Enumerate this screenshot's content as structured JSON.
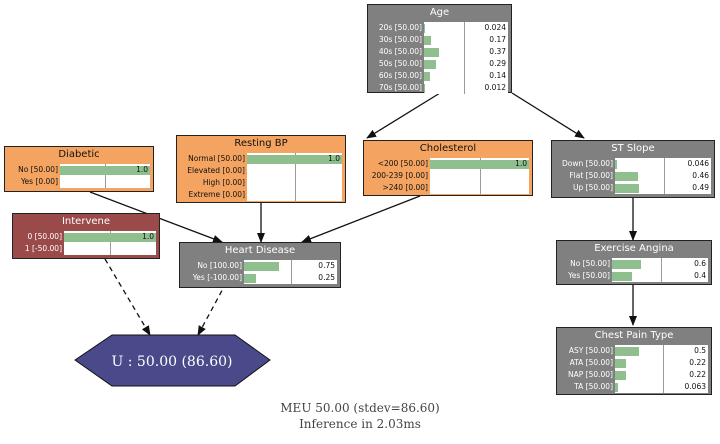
{
  "nodes": {
    "age": {
      "title": "Age",
      "rows": [
        {
          "label": "20s [50.00]",
          "value": 0.024,
          "value_text": "0.024"
        },
        {
          "label": "30s [50.00]",
          "value": 0.17,
          "value_text": "0.17"
        },
        {
          "label": "40s [50.00]",
          "value": 0.37,
          "value_text": "0.37"
        },
        {
          "label": "50s [50.00]",
          "value": 0.29,
          "value_text": "0.29"
        },
        {
          "label": "60s [50.00]",
          "value": 0.14,
          "value_text": "0.14"
        },
        {
          "label": "70s [50.00]",
          "value": 0.012,
          "value_text": "0.012"
        }
      ]
    },
    "diabetic": {
      "title": "Diabetic",
      "rows": [
        {
          "label": "No [50.00]",
          "value": 1.0,
          "value_text": "1.0"
        },
        {
          "label": "Yes [0.00]",
          "value": 0,
          "value_text": ""
        }
      ]
    },
    "resting_bp": {
      "title": "Resting BP",
      "rows": [
        {
          "label": "Normal [50.00]",
          "value": 1.0,
          "value_text": "1.0"
        },
        {
          "label": "Elevated [0.00]",
          "value": 0,
          "value_text": ""
        },
        {
          "label": "High [0.00]",
          "value": 0,
          "value_text": ""
        },
        {
          "label": "Extreme [0.00]",
          "value": 0,
          "value_text": ""
        }
      ]
    },
    "cholesterol": {
      "title": "Cholesterol",
      "rows": [
        {
          "label": "<200 [50.00]",
          "value": 1.0,
          "value_text": "1.0"
        },
        {
          "label": "200-239 [0.00]",
          "value": 0,
          "value_text": ""
        },
        {
          "label": ">240 [0.00]",
          "value": 0,
          "value_text": ""
        }
      ]
    },
    "st_slope": {
      "title": "ST Slope",
      "rows": [
        {
          "label": "Down [50.00]",
          "value": 0.046,
          "value_text": "0.046"
        },
        {
          "label": "Flat [50.00]",
          "value": 0.46,
          "value_text": "0.46"
        },
        {
          "label": "Up [50.00]",
          "value": 0.49,
          "value_text": "0.49"
        }
      ]
    },
    "intervene": {
      "title": "Intervene",
      "rows": [
        {
          "label": "0 [50.00]",
          "value": 1.0,
          "value_text": "1.0"
        },
        {
          "label": "1 [-50.00]",
          "value": 0,
          "value_text": ""
        }
      ]
    },
    "heart_disease": {
      "title": "Heart Disease",
      "rows": [
        {
          "label": "No [100.00]",
          "value": 0.75,
          "value_text": "0.75"
        },
        {
          "label": "Yes [-100.00]",
          "value": 0.25,
          "value_text": "0.25"
        }
      ]
    },
    "exercise_angina": {
      "title": "Exercise Angina",
      "rows": [
        {
          "label": "No [50.00]",
          "value": 0.6,
          "value_text": "0.6"
        },
        {
          "label": "Yes [50.00]",
          "value": 0.4,
          "value_text": "0.4"
        }
      ]
    },
    "chest_pain": {
      "title": "Chest Pain Type",
      "rows": [
        {
          "label": "ASY [50.00]",
          "value": 0.5,
          "value_text": "0.5"
        },
        {
          "label": "ATA [50.00]",
          "value": 0.22,
          "value_text": "0.22"
        },
        {
          "label": "NAP [50.00]",
          "value": 0.22,
          "value_text": "0.22"
        },
        {
          "label": "TA [50.00]",
          "value": 0.063,
          "value_text": "0.063"
        }
      ]
    }
  },
  "utility": {
    "label": "U : 50.00 (86.60)"
  },
  "footer": {
    "meu": "MEU 50.00 (stdev=86.60)",
    "inference": "Inference in   2.03ms"
  },
  "colors": {
    "decision_orange": "#f4a460",
    "chance_gray": "#808080",
    "decision_red": "#9b4a4a",
    "utility_blue": "#4a4a8a",
    "bar_green": "#8fbf8f"
  }
}
